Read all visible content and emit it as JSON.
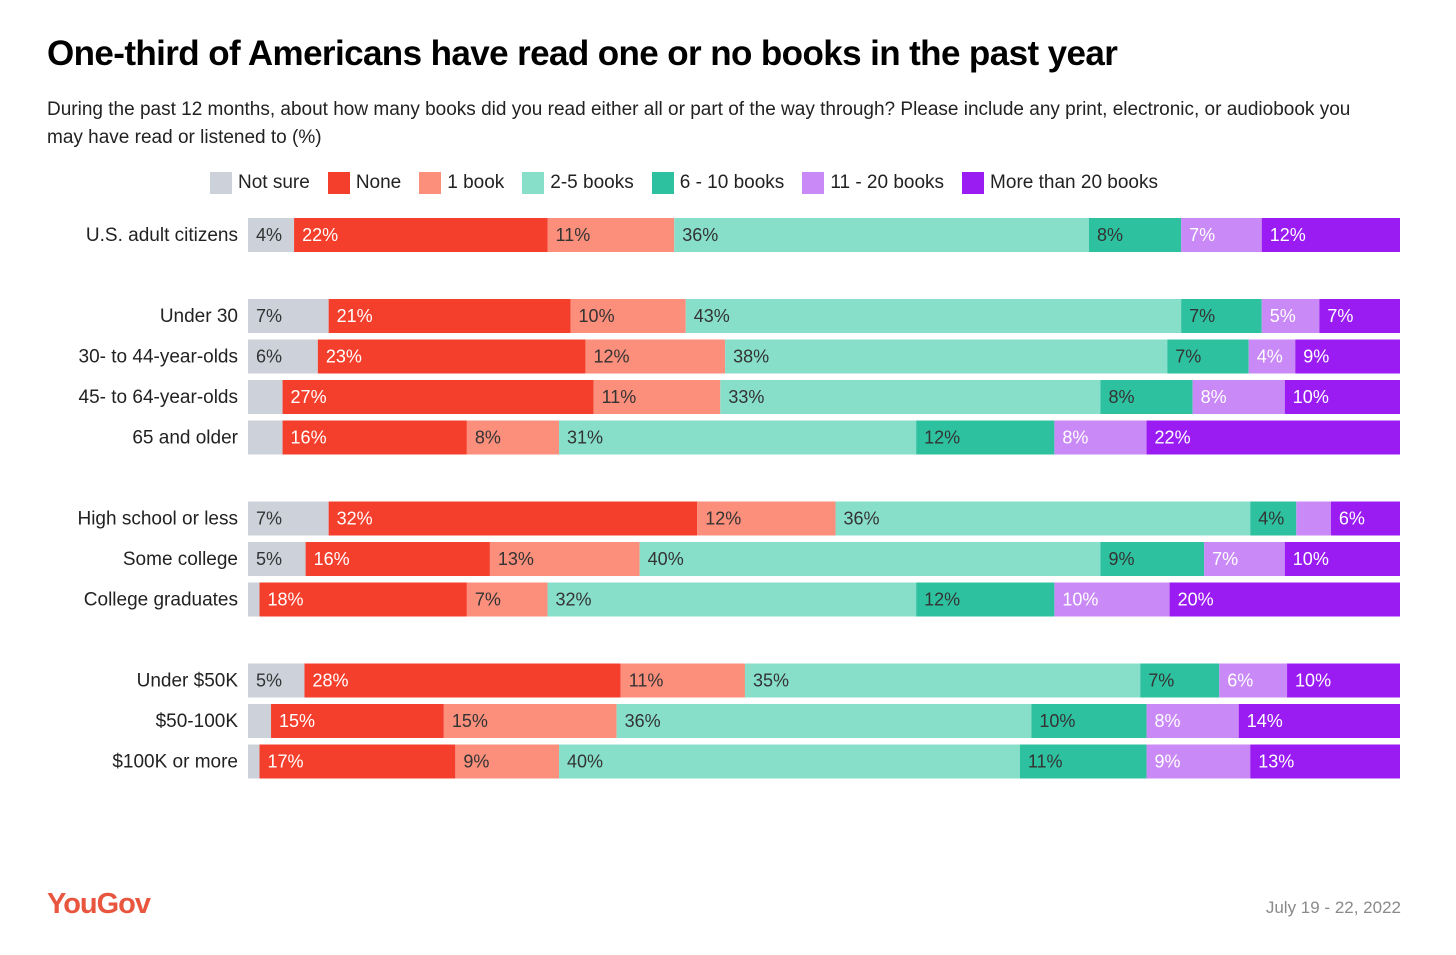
{
  "chart_data": {
    "type": "bar",
    "orientation": "horizontal",
    "stacked": true,
    "title": "One-third of Americans have read one or no books in the past year",
    "subtitle": "During the past 12 months, about how many books did you read either all or part of the way through? Please include any print, electronic, or audiobook you may have read or listened to (%)",
    "xlim": [
      0,
      100
    ],
    "grid": false,
    "legend_position": "top",
    "categories": [
      "U.S. adult citizens",
      "Under 30",
      "30- to 44-year-olds",
      "45- to 64-year-olds",
      "65 and older",
      "High school or less",
      "Some college",
      "College graduates",
      "Under $50K",
      "$50-100K",
      "$100K or more"
    ],
    "groups": [
      [
        0
      ],
      [
        1,
        2,
        3,
        4
      ],
      [
        5,
        6,
        7
      ],
      [
        8,
        9,
        10
      ]
    ],
    "series": [
      {
        "name": "Not sure",
        "color": "#ccd1da",
        "label_color": "#333333",
        "values": [
          4,
          7,
          6,
          3,
          3,
          7,
          5,
          1,
          5,
          2,
          1
        ],
        "labels": [
          "4%",
          "7%",
          "6%",
          "",
          "",
          "7%",
          "5%",
          "",
          "5%",
          "",
          ""
        ]
      },
      {
        "name": "None",
        "color": "#f53f2d",
        "label_color": "#ffffff",
        "values": [
          22,
          21,
          23,
          27,
          16,
          32,
          16,
          18,
          28,
          15,
          17
        ],
        "labels": [
          "22%",
          "21%",
          "23%",
          "27%",
          "16%",
          "32%",
          "16%",
          "18%",
          "28%",
          "15%",
          "17%"
        ]
      },
      {
        "name": "1 book",
        "color": "#fb8f7c",
        "label_color": "#333333",
        "values": [
          11,
          10,
          12,
          11,
          8,
          12,
          13,
          7,
          11,
          15,
          9
        ],
        "labels": [
          "11%",
          "10%",
          "12%",
          "11%",
          "8%",
          "12%",
          "13%",
          "7%",
          "11%",
          "15%",
          "9%"
        ]
      },
      {
        "name": "2-5 books",
        "color": "#87dfca",
        "label_color": "#333333",
        "values": [
          36,
          43,
          38,
          33,
          31,
          36,
          40,
          32,
          35,
          36,
          40
        ],
        "labels": [
          "36%",
          "43%",
          "38%",
          "33%",
          "31%",
          "36%",
          "40%",
          "32%",
          "35%",
          "36%",
          "40%"
        ]
      },
      {
        "name": "6 - 10 books",
        "color": "#2ec1a0",
        "label_color": "#333333",
        "values": [
          8,
          7,
          7,
          8,
          12,
          4,
          9,
          12,
          7,
          10,
          11
        ],
        "labels": [
          "8%",
          "7%",
          "7%",
          "8%",
          "12%",
          "4%",
          "9%",
          "12%",
          "7%",
          "10%",
          "11%"
        ]
      },
      {
        "name": "11 - 20 books",
        "color": "#c989f6",
        "label_color": "#ffffff",
        "values": [
          7,
          5,
          4,
          8,
          8,
          3,
          7,
          10,
          6,
          8,
          9
        ],
        "labels": [
          "7%",
          "5%",
          "4%",
          "8%",
          "8%",
          "",
          "7%",
          "10%",
          "6%",
          "8%",
          "9%"
        ]
      },
      {
        "name": "More than 20 books",
        "color": "#9a1cf2",
        "label_color": "#ffffff",
        "values": [
          12,
          7,
          9,
          10,
          22,
          6,
          10,
          20,
          10,
          14,
          13
        ],
        "labels": [
          "12%",
          "7%",
          "9%",
          "10%",
          "22%",
          "6%",
          "10%",
          "20%",
          "10%",
          "14%",
          "13%"
        ]
      }
    ]
  },
  "footer": {
    "brand": "YouGov",
    "date": "July 19 - 22, 2022"
  }
}
